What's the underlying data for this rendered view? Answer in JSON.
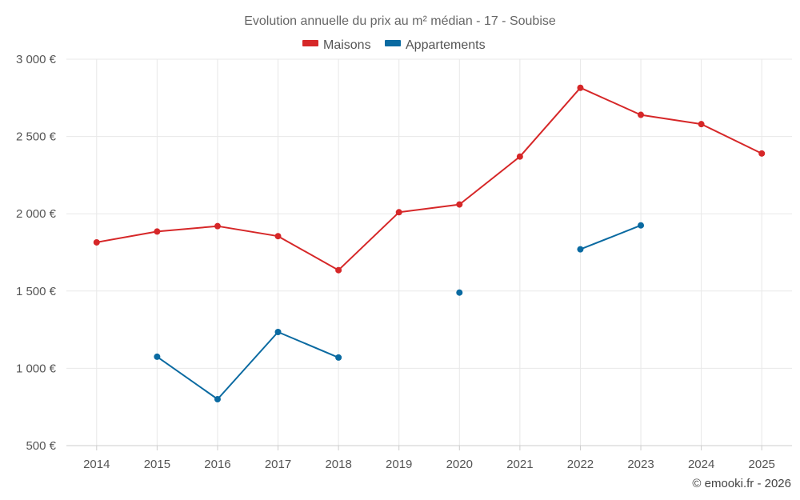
{
  "chart_data": {
    "type": "line",
    "title": "Evolution annuelle du prix au m² médian - 17 - Soubise",
    "categories": [
      "2014",
      "2015",
      "2016",
      "2017",
      "2018",
      "2019",
      "2020",
      "2021",
      "2022",
      "2023",
      "2024",
      "2025"
    ],
    "y_ticks": [
      "500 €",
      "1 000 €",
      "1 500 €",
      "2 000 €",
      "2 500 €",
      "3 000 €"
    ],
    "ylim": [
      500,
      3000
    ],
    "grid": true,
    "legend_position": "top-center",
    "series": [
      {
        "name": "Maisons",
        "color": "#d62728",
        "values": [
          1815,
          1885,
          1920,
          1855,
          1635,
          2010,
          2060,
          2370,
          2815,
          2640,
          2580,
          2390
        ]
      },
      {
        "name": "Appartements",
        "color": "#0a6aa1",
        "values": [
          null,
          1075,
          800,
          1235,
          1070,
          null,
          1490,
          null,
          1770,
          1925,
          null,
          null
        ]
      }
    ],
    "credit": "© emooki.fr - 2026"
  }
}
